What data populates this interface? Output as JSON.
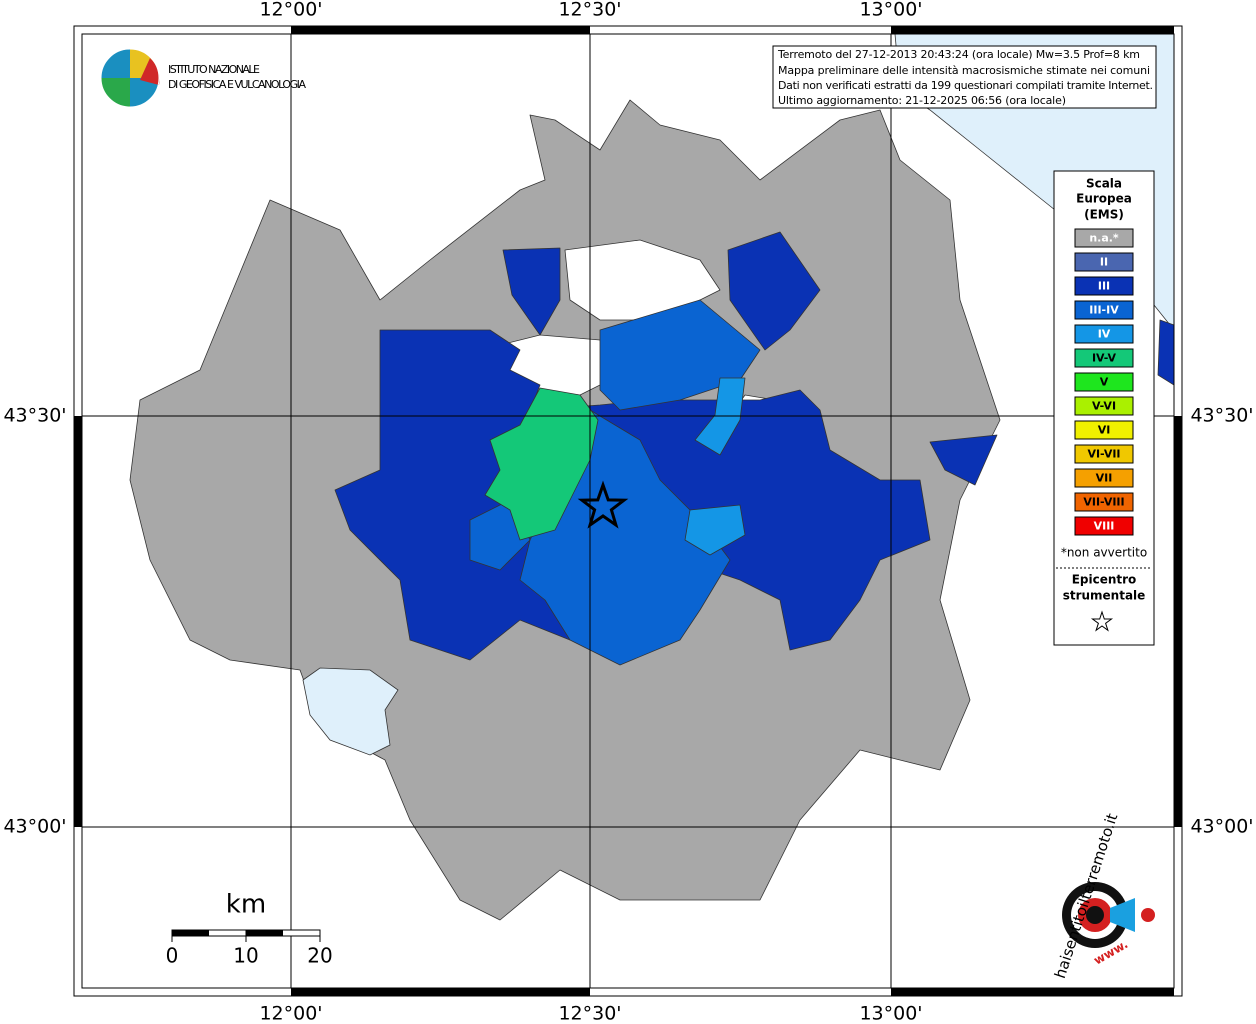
{
  "map": {
    "frame": {
      "top_labels": [
        "12°00'",
        "12°30'",
        "13°00'"
      ],
      "bottom_labels": [
        "12°00'",
        "12°30'",
        "13°00'"
      ],
      "left_labels": [
        "43°30'",
        "43°00'"
      ],
      "right_labels": [
        "43°30'",
        "43°00'"
      ]
    },
    "logo": {
      "lines": [
        "ISTITUTO NAZIONALE",
        "DI GEOFISICA E VULCANOLOGIA"
      ]
    },
    "info_box": {
      "lines": [
        "Terremoto del 27-12-2013 20:43:24 (ora locale) Mw=3.5 Prof=8 km",
        "Mappa preliminare delle intensità macrosismiche stimate nei comuni",
        "Dati non verificati estratti da 199 questionari compilati tramite Internet.",
        "Ultimo aggiornamento: 21-12-2025 06:56 (ora locale)"
      ]
    },
    "legend": {
      "title": [
        "Scala",
        "Europea",
        "(EMS)"
      ],
      "items": [
        {
          "label": "n.a.*",
          "color": "#a8a8a8",
          "text_color": "#fff"
        },
        {
          "label": "II",
          "color": "#4a66b0",
          "text_color": "#fff"
        },
        {
          "label": "III",
          "color": "#0a32b4",
          "text_color": "#fff"
        },
        {
          "label": "III-IV",
          "color": "#0a64d2",
          "text_color": "#fff"
        },
        {
          "label": "IV",
          "color": "#1496e6",
          "text_color": "#fff"
        },
        {
          "label": "IV-V",
          "color": "#14c878",
          "text_color": "#000"
        },
        {
          "label": "V",
          "color": "#1ee61e",
          "text_color": "#000"
        },
        {
          "label": "V-VI",
          "color": "#aaf000",
          "text_color": "#000"
        },
        {
          "label": "VI",
          "color": "#f0f000",
          "text_color": "#000"
        },
        {
          "label": "VI-VII",
          "color": "#f0c800",
          "text_color": "#000"
        },
        {
          "label": "VII",
          "color": "#f5a000",
          "text_color": "#000"
        },
        {
          "label": "VII-VIII",
          "color": "#f06400",
          "text_color": "#000"
        },
        {
          "label": "VIII",
          "color": "#f00000",
          "text_color": "#fff"
        }
      ],
      "note": "*non avvertito",
      "epicenter_title": [
        "Epicentro",
        "strumentale"
      ]
    },
    "scale_bar": {
      "unit": "km",
      "ticks": [
        0,
        10,
        20
      ]
    },
    "site_logo": {
      "text": "haisentitoilterremoto.it",
      "prefix": "www."
    }
  }
}
